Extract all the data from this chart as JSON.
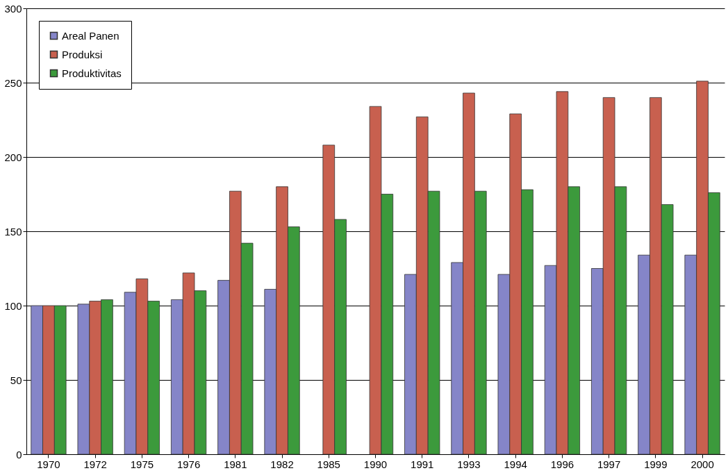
{
  "chart_data": {
    "type": "bar",
    "categories": [
      "1970",
      "1972",
      "1975",
      "1976",
      "1981",
      "1982",
      "1985",
      "1990",
      "1991",
      "1993",
      "1994",
      "1996",
      "1997",
      "1999",
      "2000"
    ],
    "series": [
      {
        "name": "Areal Panen",
        "color": "#8585c8",
        "values": [
          100,
          101,
          109,
          104,
          117,
          111,
          null,
          null,
          121,
          129,
          121,
          127,
          125,
          134,
          134
        ]
      },
      {
        "name": "Produksi",
        "color": "#c8604f",
        "values": [
          100,
          103,
          118,
          122,
          177,
          180,
          208,
          234,
          227,
          243,
          229,
          244,
          240,
          240,
          251
        ]
      },
      {
        "name": "Produktivitas",
        "color": "#3c9a3c",
        "values": [
          100,
          104,
          103,
          110,
          142,
          153,
          158,
          175,
          177,
          177,
          178,
          180,
          180,
          168,
          176
        ]
      }
    ],
    "ylim": [
      0,
      300
    ],
    "yticks": [
      0,
      50,
      100,
      150,
      200,
      250,
      300
    ],
    "grid": "y",
    "legend": "top left"
  }
}
